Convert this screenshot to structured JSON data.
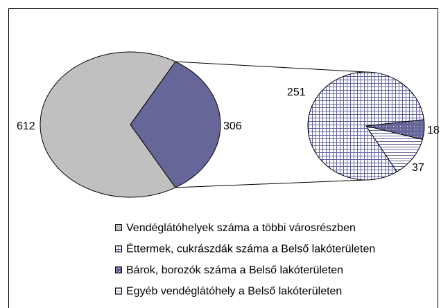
{
  "chart_data": {
    "type": "pie-of-pie",
    "main": {
      "values": [
        612,
        306
      ],
      "colors": [
        "#c0c0c0",
        "#666699"
      ]
    },
    "secondary": {
      "values": [
        251,
        18,
        37
      ],
      "colors": [
        "#6060a0",
        "#666699",
        "#ffffff"
      ]
    },
    "legend": [
      {
        "name": "Vendéglátóhelyek száma a többi városrészben",
        "color": "#c0c0c0"
      },
      {
        "name": "Éttermek, cukrászdák száma a Belső lakóterületen",
        "color": "#6060a0"
      },
      {
        "name": "Bárok, borozók száma a Belső lakóterületen",
        "color": "#666699"
      },
      {
        "name": "Egyéb vendéglátóhely a Belső lakóterületen",
        "color": "#ffffff"
      }
    ]
  }
}
